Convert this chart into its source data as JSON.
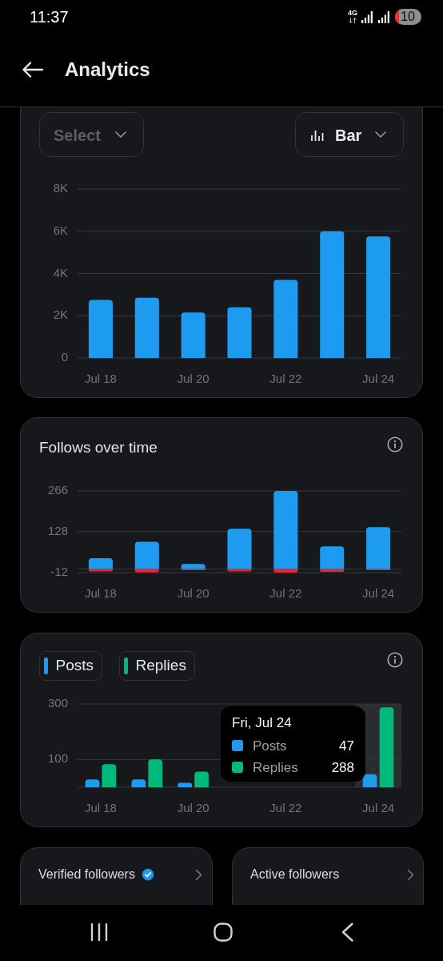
{
  "chart_data": [
    {
      "type": "other",
      "title": "Analytics",
      "annotations": [
        "11:37",
        "4G",
        "10"
      ]
    },
    {
      "type": "bar",
      "categories": [
        "Jul 18",
        null,
        "Jul 20",
        null,
        "Jul 22",
        null,
        "Jul 24"
      ],
      "values": [
        2750,
        2850,
        2150,
        2400,
        3700,
        6000,
        5750
      ],
      "color": "#1d9bf0",
      "ylim": [
        0,
        8000
      ],
      "yticks": [
        0,
        {
          "value": 2000,
          "label": "2K"
        },
        {
          "value": 4000,
          "label": "4K"
        },
        {
          "value": 6000,
          "label": "6K"
        },
        {
          "value": 8000,
          "label": "8K"
        }
      ],
      "grid": "y",
      "annotations": [
        "Select",
        "Bar"
      ]
    },
    {
      "type": "bar",
      "title": "Follows over time",
      "categories": [
        "Jul 18",
        null,
        "Jul 20",
        null,
        "Jul 22",
        null,
        "Jul 24"
      ],
      "series": [
        {
          "color": "#1d9bf0",
          "values": [
            37,
            93,
            17,
            137,
            266,
            77,
            143
          ]
        },
        {
          "color": "#f4212e",
          "values": [
            -8,
            -11,
            -4,
            -8,
            -12,
            -9,
            -4
          ]
        }
      ],
      "stacked": true,
      "ylim": [
        -12,
        266
      ],
      "yticks": [
        -12,
        {
          "value": 0,
          "label": null
        },
        128,
        266
      ],
      "grid": "y"
    },
    {
      "type": "bar",
      "categories": [
        "Jul 18",
        null,
        "Jul 20",
        null,
        "Jul 22",
        null,
        "Jul 24"
      ],
      "series": [
        {
          "name": "Posts",
          "color": "#1d9bf0",
          "values": [
            28,
            28,
            16,
            null,
            null,
            null,
            47
          ]
        },
        {
          "name": "Replies",
          "color": "#00ba7c",
          "values": [
            83,
            100,
            56,
            null,
            null,
            null,
            288
          ]
        }
      ],
      "ylim": [
        0,
        300
      ],
      "yticks": [
        {
          "value": 0,
          "label": null
        },
        100,
        300
      ],
      "grid": "y",
      "legend": "top left",
      "bands": [
        {
          "axis": "x",
          "from": "Jul 24",
          "to": "Jul 24",
          "color": "#2a2c30"
        }
      ],
      "annotations": [
        "Fri, Jul 24",
        "Posts",
        "47",
        "Replies",
        "288"
      ]
    },
    {
      "type": "other",
      "annotations": [
        "Verified followers",
        "Active followers"
      ]
    }
  ]
}
